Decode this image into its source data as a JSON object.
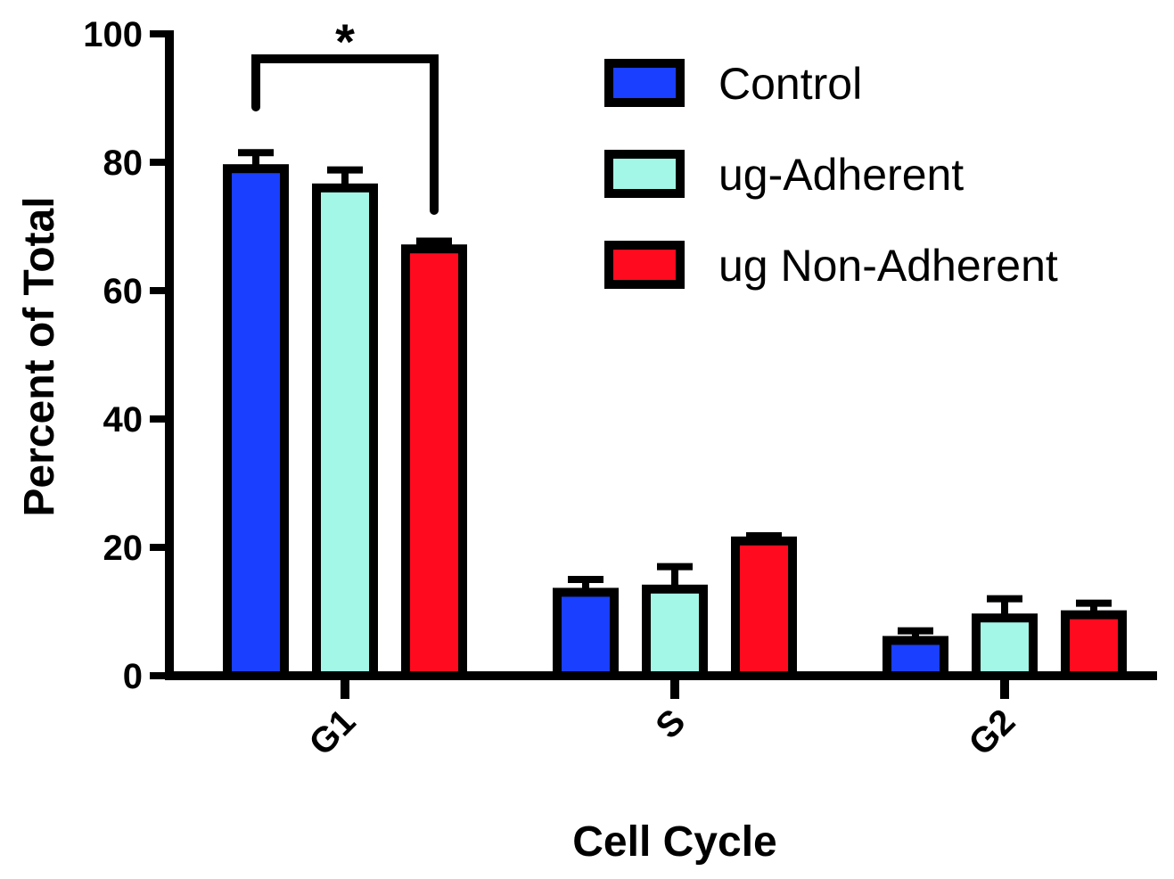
{
  "chart_data": {
    "type": "bar",
    "title": "",
    "xlabel": "Cell Cycle",
    "ylabel": "Percent of Total",
    "ylim": [
      0,
      100
    ],
    "yticks": [
      "0",
      "20",
      "40",
      "60",
      "80",
      "100"
    ],
    "categories": [
      "G1",
      "S",
      "G2"
    ],
    "series": [
      {
        "name": "Control",
        "color": "#1a3fff",
        "values": [
          79,
          13,
          5.5
        ],
        "errors": [
          2.5,
          2,
          1.5
        ]
      },
      {
        "name": "ug-Adherent",
        "color": "#a3f7e6",
        "values": [
          76,
          13.5,
          9
        ],
        "errors": [
          2.8,
          3.5,
          3
        ]
      },
      {
        "name": "ug Non-Adherent",
        "color": "#ff0a1e",
        "values": [
          66.5,
          21,
          9.5
        ],
        "errors": [
          1.2,
          0.8,
          1.8
        ]
      }
    ],
    "legend_position": "top-right",
    "grid": false,
    "annotations": [
      {
        "text": "*",
        "category": "G1",
        "from_series": "Control",
        "to_series": "ug Non-Adherent"
      }
    ]
  }
}
